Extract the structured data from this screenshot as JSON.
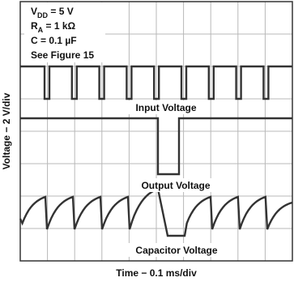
{
  "conditions": [
    {
      "main": "V",
      "sub": "DD",
      "rest": " = 5 V"
    },
    {
      "main": "R",
      "sub": "A",
      "rest": " = 1 kΩ"
    },
    {
      "main": "C = 0.1 µF"
    },
    {
      "main": "See Figure 15"
    }
  ],
  "traces": {
    "input": "Input Voltage",
    "output": "Output Voltage",
    "capacitor": "Capacitor Voltage"
  },
  "axes": {
    "y_label": "Voltage − 2 V/div",
    "x_label": "Time − 0.1 ms/div"
  }
}
